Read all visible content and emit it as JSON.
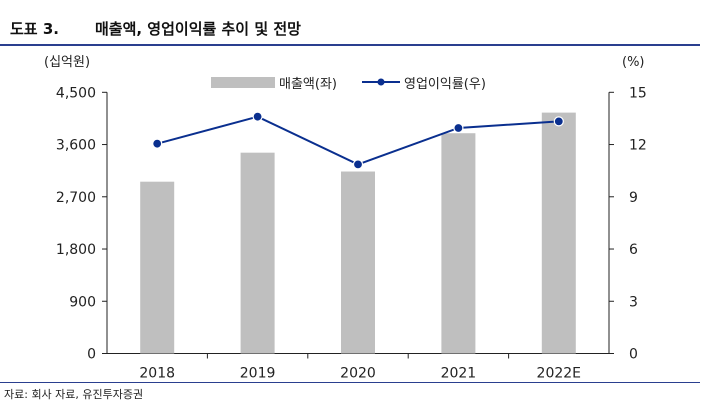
{
  "header": {
    "label": "도표 3.",
    "title": "매출액, 영업이익률 추이 및 전망"
  },
  "source": "자료: 회사 자료, 유진투자증권",
  "colors": {
    "bar": "#bfbfbf",
    "line": "#0a2f8f",
    "rule": "#2a3f8f"
  },
  "chart_data": {
    "type": "bar+line",
    "categories": [
      "2018",
      "2019",
      "2020",
      "2021",
      "2022E"
    ],
    "series": [
      {
        "name": "매출액(좌)",
        "type": "bar",
        "axis": "left",
        "values": [
          2960,
          3460,
          3135,
          3795,
          4150
        ]
      },
      {
        "name": "영업이익률(우)",
        "type": "line",
        "axis": "right",
        "values": [
          12.05,
          13.6,
          10.86,
          12.95,
          13.33
        ]
      }
    ],
    "left_axis": {
      "unit": "(십억원)",
      "ylim": [
        0,
        4500
      ],
      "ticks": [
        "0",
        "900",
        "1,800",
        "2,700",
        "3,600",
        "4,500"
      ]
    },
    "right_axis": {
      "unit": "(%)",
      "ylim": [
        0,
        15
      ],
      "ticks": [
        "0",
        "3",
        "6",
        "9",
        "12",
        "15"
      ]
    },
    "legend_position": "top",
    "grid": false
  }
}
